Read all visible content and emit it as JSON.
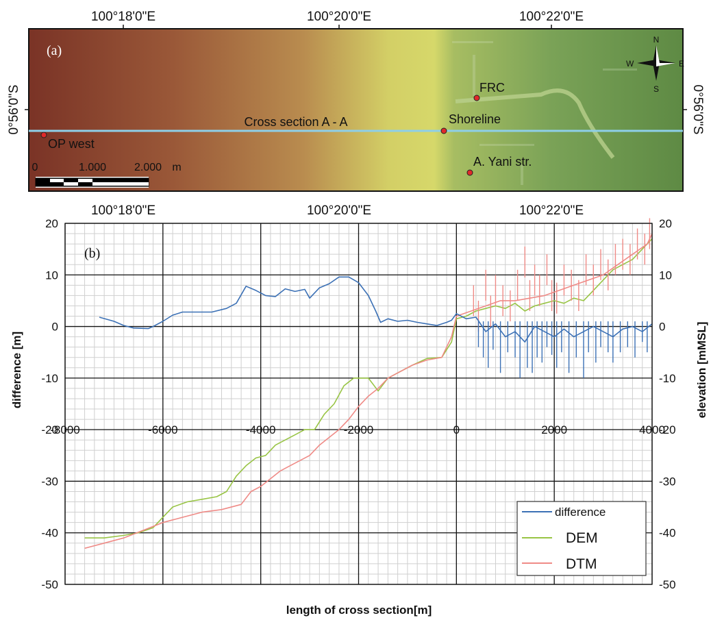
{
  "figure": {
    "panel_a_label": "(a)",
    "panel_b_label": "(b)"
  },
  "map": {
    "top_lon_labels": [
      "100°18'0\"E",
      "100°20'0\"E",
      "100°22'0\"E"
    ],
    "bottom_lon_labels": [
      "100°18'0\"E",
      "100°20'0\"E",
      "100°22'0\"E"
    ],
    "lat_label": "0°56'0\"S",
    "cross_section_label": "Cross section A - A",
    "points": [
      {
        "label": "OP west"
      },
      {
        "label": "FRC"
      },
      {
        "label": "Shoreline"
      },
      {
        "label": "A. Yani str."
      }
    ],
    "scale_labels": [
      "0",
      "1.000",
      "2.000",
      "m"
    ],
    "compass": {
      "n": "N",
      "s": "S",
      "e": "E",
      "w": "W"
    },
    "colors": {
      "sea_deep": "#7a3d2e",
      "sea_shallow": "#d6db68",
      "land": "#6e9a4e",
      "section_line": "#8ecfe8",
      "point": "#e02a2a"
    }
  },
  "chart_data": {
    "type": "line",
    "xlabel": "length of cross section[m]",
    "ylabel_left": "difference [m]",
    "ylabel_right": "elevation [mMSL]",
    "xlim": [
      -8000,
      4000
    ],
    "ylim": [
      -50,
      20
    ],
    "x_ticks": [
      -8000,
      -6000,
      -4000,
      -2000,
      0,
      2000,
      4000
    ],
    "y_ticks": [
      20,
      10,
      0,
      -10,
      -20,
      -30,
      -40,
      -50
    ],
    "grid": true,
    "legend_position": "bottom-right",
    "series": [
      {
        "name": "difference",
        "color": "#3b70b5",
        "points": [
          [
            -7300,
            1.8
          ],
          [
            -7000,
            1
          ],
          [
            -6800,
            0.2
          ],
          [
            -6600,
            -0.3
          ],
          [
            -6300,
            -0.4
          ],
          [
            -6200,
            0
          ],
          [
            -6000,
            1
          ],
          [
            -5800,
            2.2
          ],
          [
            -5600,
            2.8
          ],
          [
            -5300,
            2.8
          ],
          [
            -5000,
            2.8
          ],
          [
            -4700,
            3.5
          ],
          [
            -4500,
            4.5
          ],
          [
            -4300,
            7.8
          ],
          [
            -4100,
            7
          ],
          [
            -3900,
            6
          ],
          [
            -3700,
            5.8
          ],
          [
            -3500,
            7.3
          ],
          [
            -3300,
            6.8
          ],
          [
            -3100,
            7.2
          ],
          [
            -3000,
            5.5
          ],
          [
            -2800,
            7.5
          ],
          [
            -2600,
            8.3
          ],
          [
            -2400,
            9.6
          ],
          [
            -2200,
            9.6
          ],
          [
            -2000,
            8.5
          ],
          [
            -1800,
            6
          ],
          [
            -1650,
            3
          ],
          [
            -1550,
            0.8
          ],
          [
            -1400,
            1.5
          ],
          [
            -1200,
            1
          ],
          [
            -1000,
            1.2
          ],
          [
            -800,
            0.8
          ],
          [
            -600,
            0.5
          ],
          [
            -400,
            0.2
          ],
          [
            -200,
            0.8
          ],
          [
            -100,
            1.2
          ],
          [
            0,
            2.5
          ],
          [
            200,
            1.5
          ],
          [
            400,
            1.8
          ],
          [
            600,
            -1
          ],
          [
            800,
            0.5
          ],
          [
            1000,
            -2
          ],
          [
            1200,
            -1
          ],
          [
            1400,
            -3
          ],
          [
            1600,
            0
          ],
          [
            1800,
            -1
          ],
          [
            2000,
            -2
          ],
          [
            2200,
            -0.5
          ],
          [
            2400,
            -2
          ],
          [
            2600,
            -1
          ],
          [
            2800,
            0
          ],
          [
            3000,
            -1
          ],
          [
            3200,
            -2
          ],
          [
            3400,
            -0.5
          ],
          [
            3600,
            0
          ],
          [
            3800,
            -1
          ],
          [
            4000,
            0.5
          ]
        ],
        "dips": [
          [
            450,
            -4
          ],
          [
            550,
            -6
          ],
          [
            650,
            -8
          ],
          [
            750,
            -4.5
          ],
          [
            900,
            -9
          ],
          [
            1050,
            -5
          ],
          [
            1200,
            -6
          ],
          [
            1300,
            -10
          ],
          [
            1450,
            -8
          ],
          [
            1550,
            -9
          ],
          [
            1650,
            -6
          ],
          [
            1750,
            -7
          ],
          [
            1850,
            -4
          ],
          [
            1950,
            -5.5
          ],
          [
            2050,
            -8
          ],
          [
            2150,
            -5
          ],
          [
            2300,
            -9
          ],
          [
            2450,
            -6
          ],
          [
            2600,
            -10
          ],
          [
            2700,
            -5
          ],
          [
            2850,
            -7
          ],
          [
            2950,
            -4
          ],
          [
            3100,
            -5
          ],
          [
            3200,
            -7
          ],
          [
            3350,
            -5
          ],
          [
            3500,
            -4
          ],
          [
            3650,
            -6
          ],
          [
            3800,
            -3
          ],
          [
            3900,
            -5
          ]
        ]
      },
      {
        "name": "DEM",
        "color": "#98c444",
        "points": [
          [
            -7600,
            -41
          ],
          [
            -7200,
            -41
          ],
          [
            -6800,
            -40.5
          ],
          [
            -6500,
            -40
          ],
          [
            -6200,
            -39
          ],
          [
            -6000,
            -37
          ],
          [
            -5800,
            -35
          ],
          [
            -5500,
            -34
          ],
          [
            -5200,
            -33.5
          ],
          [
            -4900,
            -33
          ],
          [
            -4700,
            -32
          ],
          [
            -4500,
            -29
          ],
          [
            -4300,
            -27
          ],
          [
            -4100,
            -25.5
          ],
          [
            -3900,
            -25
          ],
          [
            -3700,
            -23
          ],
          [
            -3500,
            -22
          ],
          [
            -3300,
            -21
          ],
          [
            -3100,
            -20
          ],
          [
            -2900,
            -20
          ],
          [
            -2700,
            -17
          ],
          [
            -2500,
            -15
          ],
          [
            -2300,
            -11.5
          ],
          [
            -2100,
            -10
          ],
          [
            -1800,
            -10
          ],
          [
            -1600,
            -12.5
          ],
          [
            -1400,
            -10
          ],
          [
            -1200,
            -9
          ],
          [
            -900,
            -7.5
          ],
          [
            -600,
            -6.2
          ],
          [
            -300,
            -6
          ],
          [
            -100,
            -3
          ],
          [
            0,
            1.5
          ],
          [
            200,
            2
          ],
          [
            400,
            3
          ],
          [
            600,
            3.5
          ],
          [
            800,
            4
          ],
          [
            1000,
            3.5
          ],
          [
            1200,
            4.5
          ],
          [
            1400,
            3
          ],
          [
            1600,
            4
          ],
          [
            1800,
            4.5
          ],
          [
            2000,
            5
          ],
          [
            2200,
            4.5
          ],
          [
            2400,
            5.5
          ],
          [
            2600,
            5
          ],
          [
            2800,
            7
          ],
          [
            3000,
            9
          ],
          [
            3200,
            11
          ],
          [
            3400,
            12
          ],
          [
            3600,
            13
          ],
          [
            3800,
            15
          ],
          [
            4000,
            17
          ]
        ]
      },
      {
        "name": "DTM",
        "color": "#ef8a86",
        "points": [
          [
            -7600,
            -43
          ],
          [
            -7200,
            -42
          ],
          [
            -6800,
            -41
          ],
          [
            -6400,
            -39.5
          ],
          [
            -6000,
            -38
          ],
          [
            -5600,
            -37
          ],
          [
            -5200,
            -36
          ],
          [
            -4800,
            -35.5
          ],
          [
            -4400,
            -34.5
          ],
          [
            -4200,
            -32
          ],
          [
            -4000,
            -31
          ],
          [
            -3800,
            -29.5
          ],
          [
            -3600,
            -28
          ],
          [
            -3400,
            -27
          ],
          [
            -3200,
            -26
          ],
          [
            -3000,
            -25
          ],
          [
            -2800,
            -23
          ],
          [
            -2600,
            -21.5
          ],
          [
            -2400,
            -20
          ],
          [
            -2200,
            -18
          ],
          [
            -2000,
            -15.5
          ],
          [
            -1800,
            -13.5
          ],
          [
            -1600,
            -12
          ],
          [
            -1400,
            -10
          ],
          [
            -1200,
            -9
          ],
          [
            -900,
            -7.5
          ],
          [
            -600,
            -6.5
          ],
          [
            -300,
            -6
          ],
          [
            -100,
            -2
          ],
          [
            0,
            2
          ],
          [
            300,
            3
          ],
          [
            600,
            4
          ],
          [
            900,
            5
          ],
          [
            1200,
            5
          ],
          [
            1500,
            5.5
          ],
          [
            1800,
            6
          ],
          [
            2100,
            7
          ],
          [
            2400,
            8
          ],
          [
            2700,
            9
          ],
          [
            3000,
            10
          ],
          [
            3300,
            12
          ],
          [
            3600,
            14
          ],
          [
            3900,
            16
          ],
          [
            4000,
            18
          ]
        ],
        "spikes": [
          [
            350,
            8
          ],
          [
            450,
            5
          ],
          [
            600,
            11
          ],
          [
            700,
            6
          ],
          [
            800,
            10
          ],
          [
            950,
            8
          ],
          [
            1100,
            7
          ],
          [
            1250,
            11
          ],
          [
            1400,
            15.5
          ],
          [
            1500,
            9
          ],
          [
            1600,
            12
          ],
          [
            1700,
            10
          ],
          [
            1850,
            14
          ],
          [
            1950,
            9
          ],
          [
            2050,
            8.5
          ],
          [
            2200,
            12
          ],
          [
            2350,
            11
          ],
          [
            2500,
            9
          ],
          [
            2650,
            14
          ],
          [
            2800,
            12
          ],
          [
            2950,
            15
          ],
          [
            3100,
            13
          ],
          [
            3250,
            16
          ],
          [
            3400,
            17
          ],
          [
            3550,
            16
          ],
          [
            3700,
            19
          ],
          [
            3850,
            18
          ],
          [
            3950,
            21
          ]
        ]
      }
    ]
  }
}
